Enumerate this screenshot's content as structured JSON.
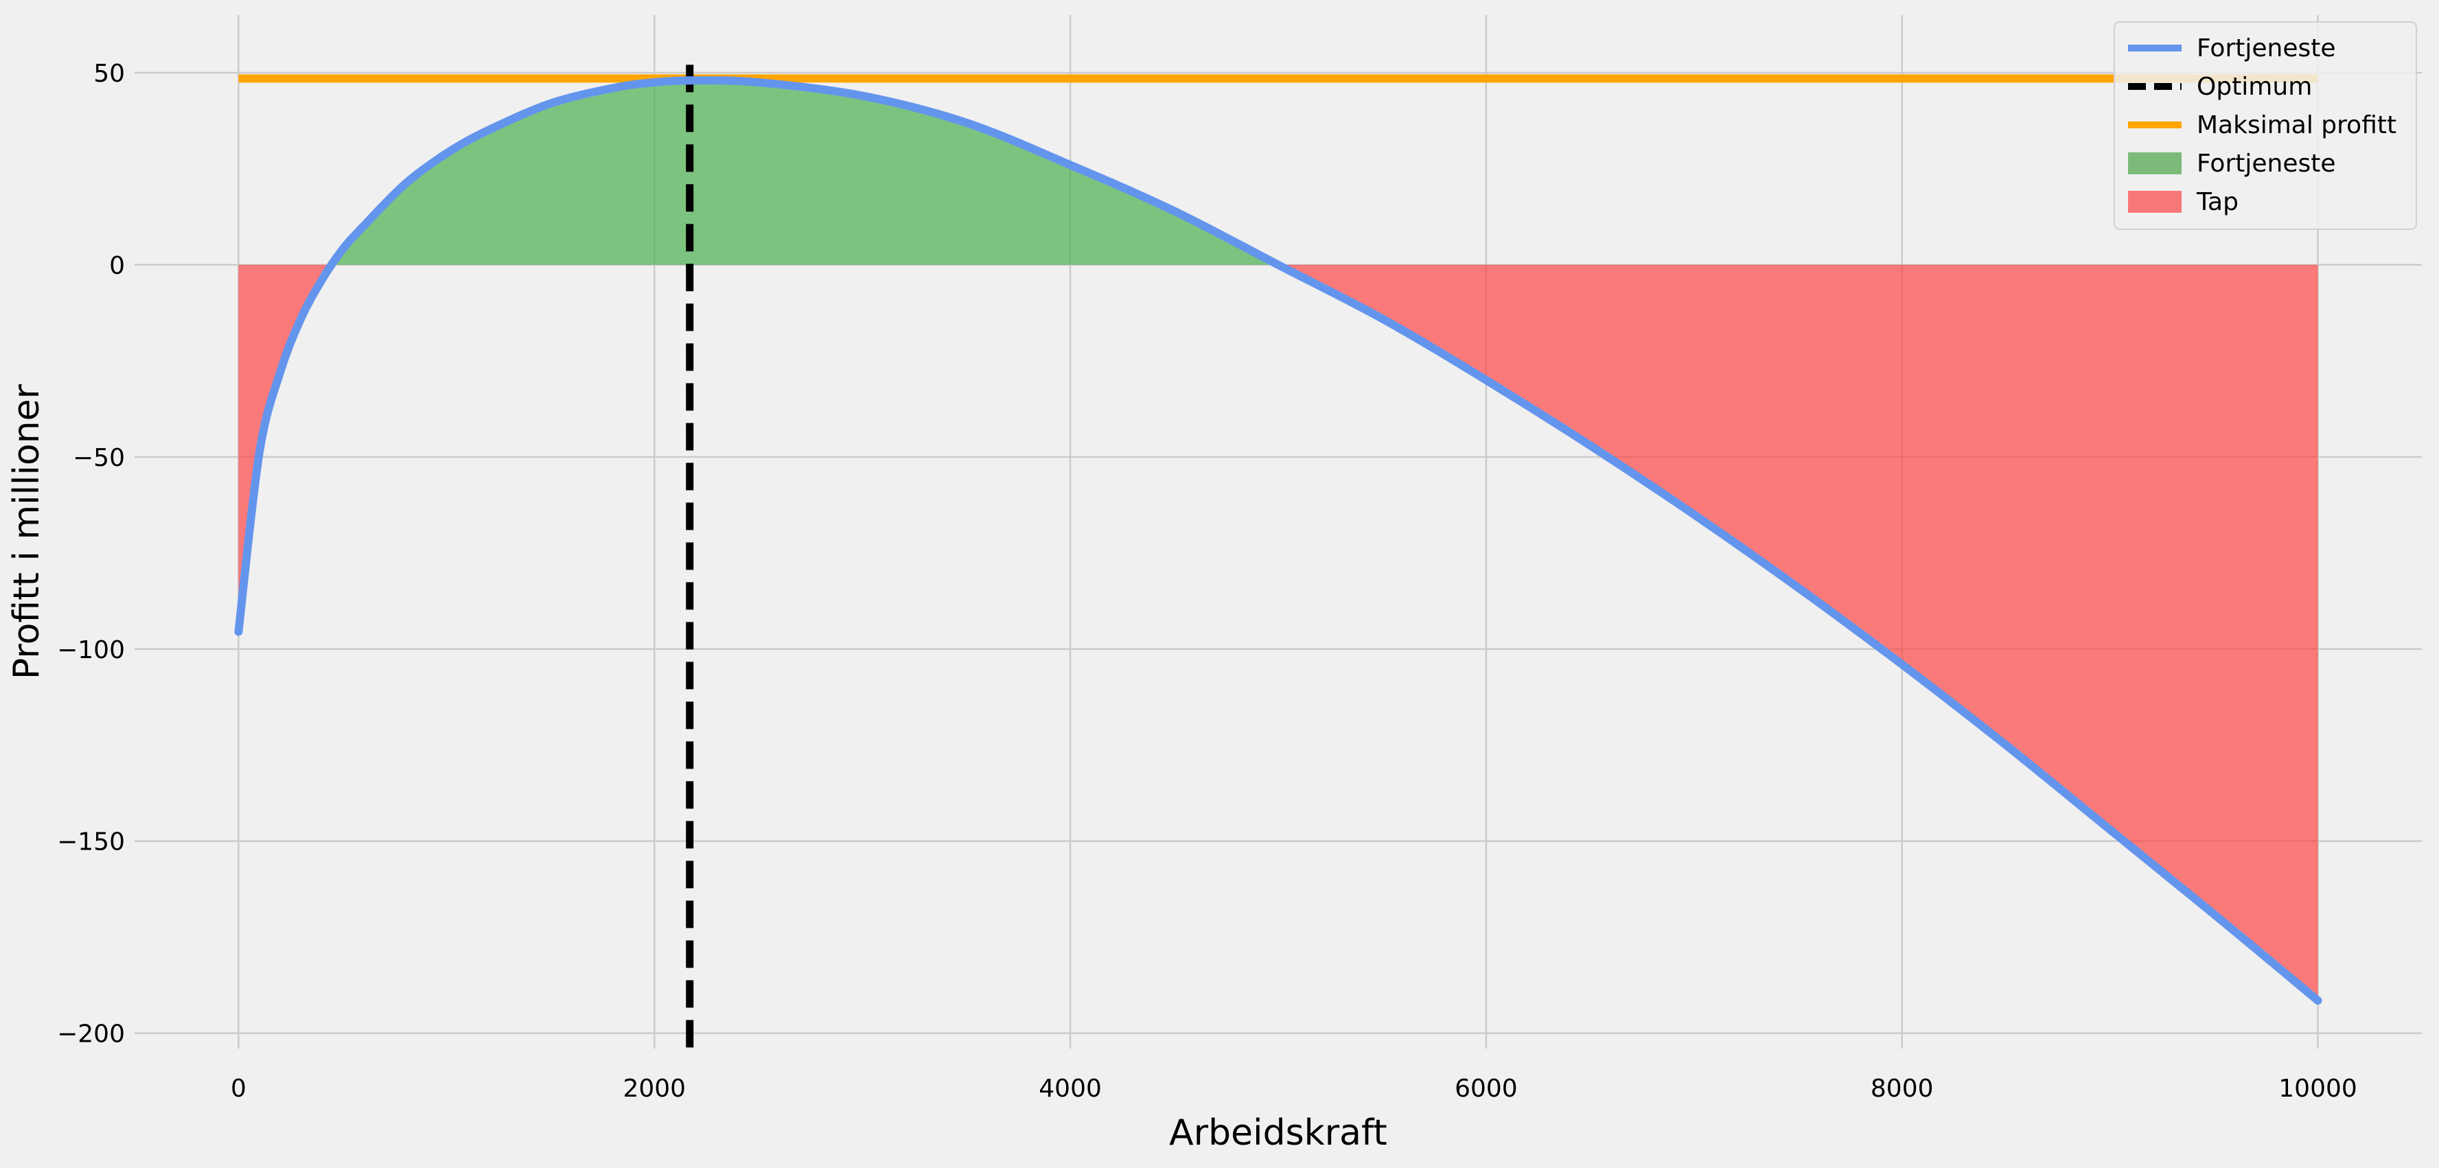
{
  "chart_data": {
    "type": "line",
    "title": "",
    "xlabel": "Arbeidskraft",
    "ylabel": "Profitt i millioner",
    "xlim": [
      -500,
      10500
    ],
    "ylim": [
      -204,
      65
    ],
    "xticks": [
      0,
      2000,
      4000,
      6000,
      8000,
      10000
    ],
    "xtick_labels": [
      "0",
      "2000",
      "4000",
      "6000",
      "8000",
      "10000"
    ],
    "yticks": [
      50,
      0,
      -50,
      -100,
      -150,
      -200
    ],
    "ytick_labels": [
      "50",
      "0",
      "−50",
      "−100",
      "−150",
      "−200"
    ],
    "grid": true,
    "legend_position": "top-right",
    "series": [
      {
        "name": "Fortjeneste",
        "kind": "line",
        "color": "#6495ed",
        "x": [
          0,
          100,
          200,
          300,
          400,
          500,
          600,
          800,
          1000,
          1200,
          1500,
          1800,
          2000,
          2200,
          2500,
          3000,
          3500,
          4000,
          4500,
          5000,
          5500,
          6000,
          6500,
          7000,
          7500,
          8000,
          8500,
          9000,
          9500,
          10000
        ],
        "y": [
          -95.5,
          -49,
          -28,
          -14,
          -4,
          4,
          10,
          21,
          29,
          35,
          42,
          46,
          47.5,
          48,
          47.5,
          44,
          37,
          26,
          14,
          0,
          -14,
          -30,
          -47,
          -65,
          -84,
          -104,
          -125,
          -147,
          -169,
          -191.5
        ]
      },
      {
        "name": "Optimum",
        "kind": "vline",
        "color": "#000000",
        "x": 2170
      },
      {
        "name": "Maksimal profitt",
        "kind": "hline",
        "color": "#ffa500",
        "y": 48.5,
        "x_range": [
          0,
          10000
        ]
      }
    ],
    "fills": [
      {
        "name": "Fortjeneste",
        "color": "#4caf50",
        "where": "positive"
      },
      {
        "name": "Tap",
        "color": "#ff3b3b",
        "where": "negative"
      }
    ],
    "legend": [
      {
        "label": "Fortjeneste",
        "kind": "line",
        "color": "#6495ed"
      },
      {
        "label": "Optimum",
        "kind": "dashed",
        "color": "#000000"
      },
      {
        "label": "Maksimal profitt",
        "kind": "line",
        "color": "#ffa500"
      },
      {
        "label": "Fortjeneste",
        "kind": "patch",
        "color": "#7cba7a"
      },
      {
        "label": "Tap",
        "kind": "patch",
        "color": "#f77877"
      }
    ]
  }
}
